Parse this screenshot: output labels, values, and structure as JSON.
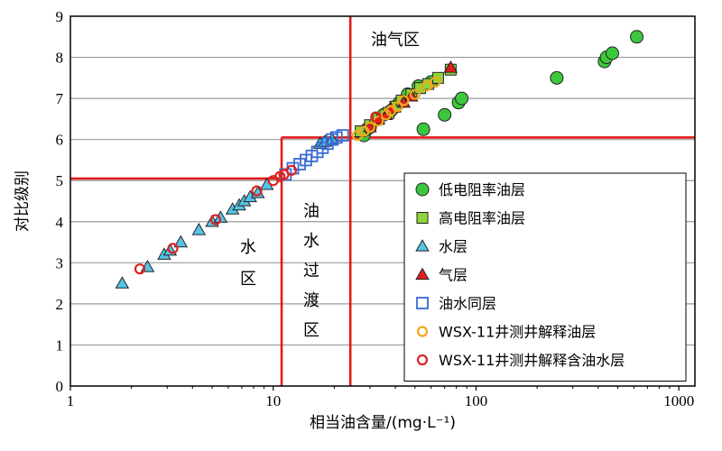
{
  "chart_data": {
    "type": "scatter",
    "xlabel": "相当油含量/(mg·L⁻¹)",
    "ylabel": "对比级别",
    "xscale": "log",
    "xlim": [
      1,
      1200
    ],
    "ylim": [
      0,
      9
    ],
    "x_ticks": [
      "1",
      "10",
      "100",
      "1000"
    ],
    "y_ticks": [
      "0",
      "1",
      "2",
      "3",
      "4",
      "5",
      "6",
      "7",
      "8",
      "9"
    ],
    "grid": "horizontal",
    "legend_position": "bottom-right",
    "boundaries": {
      "water_zone_max_level": 5.05,
      "oil_gas_zone_min_level": 6.05,
      "water_zone_max_x": 11,
      "oil_gas_zone_min_x": 24
    },
    "regions": [
      {
        "name": "oil-gas-zone",
        "chars": [
          "油气区"
        ]
      },
      {
        "name": "water-zone",
        "chars": [
          "水",
          "区"
        ]
      },
      {
        "name": "transition-zone",
        "chars": [
          "油",
          "水",
          "过",
          "渡",
          "区"
        ]
      }
    ],
    "series": [
      {
        "name": "低电阻率油层",
        "marker": "circle",
        "color": "#3cc83c",
        "points": [
          [
            28,
            6.1
          ],
          [
            29,
            6.25
          ],
          [
            30,
            6.3
          ],
          [
            35,
            6.6
          ],
          [
            38,
            6.7
          ],
          [
            40,
            6.8
          ],
          [
            42,
            6.9
          ],
          [
            46,
            7.1
          ],
          [
            52,
            7.3
          ],
          [
            55,
            6.25
          ],
          [
            60,
            7.4
          ],
          [
            70,
            6.6
          ],
          [
            82,
            6.9
          ],
          [
            85,
            7.0
          ],
          [
            250,
            7.5
          ],
          [
            430,
            7.9
          ],
          [
            440,
            8.0
          ],
          [
            470,
            8.1
          ],
          [
            620,
            8.5
          ]
        ]
      },
      {
        "name": "高电阻率油层",
        "marker": "square",
        "color": "#8fd43a",
        "points": [
          [
            27,
            6.2
          ],
          [
            30,
            6.35
          ],
          [
            33,
            6.5
          ],
          [
            37,
            6.65
          ],
          [
            40,
            6.8
          ],
          [
            43,
            6.95
          ],
          [
            48,
            7.1
          ],
          [
            53,
            7.25
          ],
          [
            58,
            7.35
          ],
          [
            65,
            7.5
          ],
          [
            75,
            7.7
          ]
        ]
      },
      {
        "name": "水层",
        "marker": "triangle-up",
        "color": "#55c4e6",
        "points": [
          [
            1.8,
            2.5
          ],
          [
            2.4,
            2.9
          ],
          [
            2.9,
            3.2
          ],
          [
            3.1,
            3.3
          ],
          [
            3.5,
            3.5
          ],
          [
            4.3,
            3.8
          ],
          [
            5,
            4.0
          ],
          [
            5.5,
            4.1
          ],
          [
            6.3,
            4.3
          ],
          [
            6.8,
            4.4
          ],
          [
            7.2,
            4.5
          ],
          [
            7.7,
            4.6
          ],
          [
            8.4,
            4.7
          ],
          [
            9.3,
            4.9
          ],
          [
            17,
            5.9
          ],
          [
            18,
            5.95
          ],
          [
            19.5,
            6.0
          ]
        ]
      },
      {
        "name": "气层",
        "marker": "triangle-up",
        "color": "#e02020",
        "points": [
          [
            30,
            6.3
          ],
          [
            33,
            6.5
          ],
          [
            36,
            6.6
          ],
          [
            38,
            6.75
          ],
          [
            44,
            6.9
          ],
          [
            48,
            7.05
          ],
          [
            75,
            7.75
          ]
        ]
      },
      {
        "name": "油水同层",
        "marker": "square-open",
        "color": "#3a6ad4",
        "points": [
          [
            11.5,
            5.15
          ],
          [
            12.5,
            5.3
          ],
          [
            13.5,
            5.4
          ],
          [
            14.5,
            5.5
          ],
          [
            15.5,
            5.6
          ],
          [
            16.5,
            5.7
          ],
          [
            17.5,
            5.8
          ],
          [
            18.5,
            5.9
          ],
          [
            19.5,
            6.0
          ],
          [
            20.5,
            6.05
          ],
          [
            22,
            6.1
          ]
        ]
      },
      {
        "name": "WSX-11井测井解释油层",
        "marker": "circle-open",
        "color": "#f0a81e",
        "points": [
          [
            26,
            6.1
          ],
          [
            28,
            6.2
          ],
          [
            30,
            6.3
          ],
          [
            33,
            6.45
          ],
          [
            36,
            6.6
          ],
          [
            38,
            6.7
          ],
          [
            41,
            6.8
          ],
          [
            44,
            6.95
          ],
          [
            50,
            7.1
          ],
          [
            57,
            7.3
          ],
          [
            63,
            7.4
          ]
        ]
      },
      {
        "name": "WSX-11井测井解释含油水层",
        "marker": "circle-open",
        "color": "#e02020",
        "points": [
          [
            2.2,
            2.85
          ],
          [
            3.2,
            3.35
          ],
          [
            5.2,
            4.05
          ],
          [
            8.3,
            4.75
          ],
          [
            10,
            5.0
          ],
          [
            10.8,
            5.1
          ],
          [
            11.3,
            5.15
          ],
          [
            12.3,
            5.25
          ],
          [
            32,
            6.55
          ]
        ]
      }
    ]
  }
}
